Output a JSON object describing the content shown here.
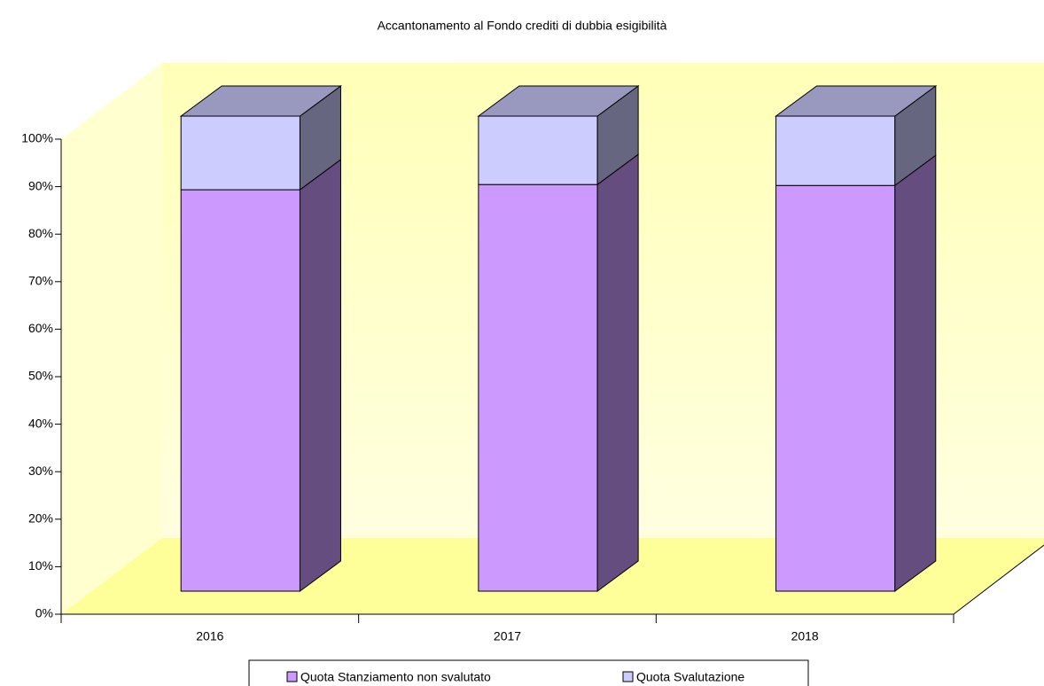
{
  "chart_data": {
    "type": "bar",
    "stacked": true,
    "title": "Accantonamento al Fondo crediti di dubbia esigibilità",
    "categories": [
      "2016",
      "2017",
      "2018"
    ],
    "series": [
      {
        "name": "Quota Stanziamento non svalutato",
        "color": "#cc99ff",
        "values": [
          84.5,
          85.6,
          85.4
        ]
      },
      {
        "name": "Quota Svalutazione",
        "color": "#ccccff",
        "values": [
          15.5,
          14.4,
          14.6
        ]
      }
    ],
    "ylim": [
      0,
      100
    ],
    "yticks": [
      {
        "value": 0,
        "label": "0%"
      },
      {
        "value": 10,
        "label": "10%"
      },
      {
        "value": 20,
        "label": "20%"
      },
      {
        "value": 30,
        "label": "30%"
      },
      {
        "value": 40,
        "label": "40%"
      },
      {
        "value": 50,
        "label": "50%"
      },
      {
        "value": 60,
        "label": "60%"
      },
      {
        "value": 70,
        "label": "70%"
      },
      {
        "value": 80,
        "label": "80%"
      },
      {
        "value": 90,
        "label": "90%"
      },
      {
        "value": 100,
        "label": "100%"
      }
    ],
    "legend": "bottom"
  }
}
